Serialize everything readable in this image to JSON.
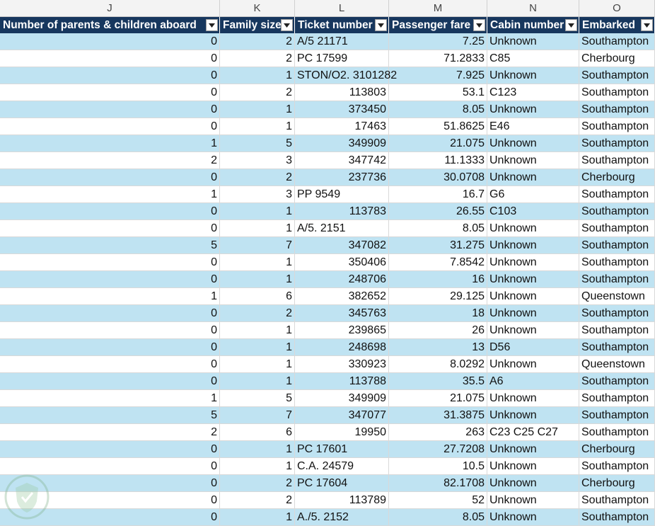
{
  "columns": [
    "J",
    "K",
    "L",
    "M",
    "N",
    "O"
  ],
  "headers": [
    "Number of parents &  children aboard",
    "Family size",
    "Ticket number",
    "Passenger fare",
    "Cabin number",
    "Embarked"
  ],
  "filter_icon": "dropdown-arrow-icon",
  "colors": {
    "header_bg": "#17375e",
    "band_bg": "#bfe3f2",
    "header_text": "#ffffff"
  },
  "rows": [
    [
      "0",
      "2",
      "A/5 21171",
      "7.25",
      "Unknown",
      "Southampton"
    ],
    [
      "0",
      "2",
      "PC 17599",
      "71.2833",
      "C85",
      "Cherbourg"
    ],
    [
      "0",
      "1",
      "STON/O2. 3101282",
      "7.925",
      "Unknown",
      "Southampton"
    ],
    [
      "0",
      "2",
      "113803",
      "53.1",
      "C123",
      "Southampton"
    ],
    [
      "0",
      "1",
      "373450",
      "8.05",
      "Unknown",
      "Southampton"
    ],
    [
      "0",
      "1",
      "17463",
      "51.8625",
      "E46",
      "Southampton"
    ],
    [
      "1",
      "5",
      "349909",
      "21.075",
      "Unknown",
      "Southampton"
    ],
    [
      "2",
      "3",
      "347742",
      "11.1333",
      "Unknown",
      "Southampton"
    ],
    [
      "0",
      "2",
      "237736",
      "30.0708",
      "Unknown",
      "Cherbourg"
    ],
    [
      "1",
      "3",
      "PP 9549",
      "16.7",
      "G6",
      "Southampton"
    ],
    [
      "0",
      "1",
      "113783",
      "26.55",
      "C103",
      "Southampton"
    ],
    [
      "0",
      "1",
      "A/5. 2151",
      "8.05",
      "Unknown",
      "Southampton"
    ],
    [
      "5",
      "7",
      "347082",
      "31.275",
      "Unknown",
      "Southampton"
    ],
    [
      "0",
      "1",
      "350406",
      "7.8542",
      "Unknown",
      "Southampton"
    ],
    [
      "0",
      "1",
      "248706",
      "16",
      "Unknown",
      "Southampton"
    ],
    [
      "1",
      "6",
      "382652",
      "29.125",
      "Unknown",
      "Queenstown"
    ],
    [
      "0",
      "2",
      "345763",
      "18",
      "Unknown",
      "Southampton"
    ],
    [
      "0",
      "1",
      "239865",
      "26",
      "Unknown",
      "Southampton"
    ],
    [
      "0",
      "1",
      "248698",
      "13",
      "D56",
      "Southampton"
    ],
    [
      "0",
      "1",
      "330923",
      "8.0292",
      "Unknown",
      "Queenstown"
    ],
    [
      "0",
      "1",
      "113788",
      "35.5",
      "A6",
      "Southampton"
    ],
    [
      "1",
      "5",
      "349909",
      "21.075",
      "Unknown",
      "Southampton"
    ],
    [
      "5",
      "7",
      "347077",
      "31.3875",
      "Unknown",
      "Southampton"
    ],
    [
      "2",
      "6",
      "19950",
      "263",
      "C23 C25 C27",
      "Southampton"
    ],
    [
      "0",
      "1",
      "PC 17601",
      "27.7208",
      "Unknown",
      "Cherbourg"
    ],
    [
      "0",
      "1",
      "C.A. 24579",
      "10.5",
      "Unknown",
      "Southampton"
    ],
    [
      "0",
      "2",
      "PC 17604",
      "82.1708",
      "Unknown",
      "Cherbourg"
    ],
    [
      "0",
      "2",
      "113789",
      "52",
      "Unknown",
      "Southampton"
    ],
    [
      "0",
      "1",
      "A./5. 2152",
      "8.05",
      "Unknown",
      "Southampton"
    ]
  ]
}
